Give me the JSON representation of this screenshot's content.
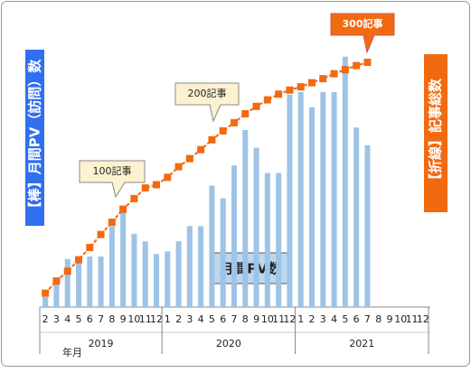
{
  "chart_data": {
    "type": "bar-line",
    "y_label_left": "【棒】月間PV（訪問）数",
    "y_label_right": "【折線】記事総数",
    "x_label": "年月",
    "bar_label": "月間PV数",
    "annotations": [
      "100記事",
      "200記事",
      "300記事"
    ],
    "categories": [
      "2",
      "3",
      "4",
      "5",
      "6",
      "7",
      "8",
      "9",
      "10",
      "11",
      "12",
      "1",
      "2",
      "3",
      "4",
      "5",
      "6",
      "7",
      "8",
      "9",
      "10",
      "11",
      "12",
      "1",
      "2",
      "3",
      "4",
      "5",
      "6",
      "7",
      "8",
      "9",
      "10",
      "11",
      "12"
    ],
    "x_groups": [
      "2019",
      "2020",
      "2021"
    ],
    "series": [
      {
        "color": "#9dc3e6",
        "values": [
          4,
          9,
          19,
          20,
          20,
          20,
          32,
          39,
          29,
          26,
          21,
          22,
          26,
          32,
          32,
          48,
          43,
          56,
          70,
          63,
          53,
          53,
          84,
          85,
          79,
          85,
          85,
          99,
          71,
          64,
          null,
          null,
          null,
          null,
          null
        ]
      },
      {
        "color": "#f26a10",
        "axis": "y2",
        "values": [
          17,
          32,
          44,
          58,
          73,
          89,
          104,
          120,
          133,
          146,
          150,
          159,
          172,
          182,
          193,
          205,
          216,
          226,
          237,
          246,
          254,
          261,
          266,
          270,
          275,
          280,
          286,
          291,
          296,
          300,
          null,
          null,
          null,
          null,
          null
        ]
      }
    ],
    "ylim": [
      0,
      100
    ],
    "y2lim": [
      0,
      310
    ]
  }
}
